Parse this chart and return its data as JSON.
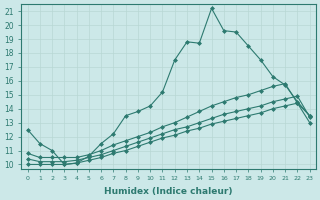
{
  "xlabel": "Humidex (Indice chaleur)",
  "ylabel": "",
  "background_color": "#cce8e8",
  "line_color": "#2d7a70",
  "grid_color": "#b8d8d4",
  "xlim": [
    -0.5,
    23.5
  ],
  "ylim": [
    9.7,
    21.5
  ],
  "x_ticks": [
    0,
    1,
    2,
    3,
    4,
    5,
    6,
    7,
    8,
    9,
    10,
    11,
    12,
    13,
    14,
    15,
    16,
    17,
    18,
    19,
    20,
    21,
    22,
    23
  ],
  "y_ticks": [
    10,
    11,
    12,
    13,
    14,
    15,
    16,
    17,
    18,
    19,
    20,
    21
  ],
  "series": [
    {
      "x": [
        0,
        1,
        2,
        3,
        4,
        5,
        6,
        7,
        8,
        9,
        10,
        11,
        12,
        13,
        14,
        15,
        16,
        17,
        18,
        19,
        20,
        21,
        22,
        23
      ],
      "y": [
        12.5,
        11.5,
        11.0,
        10.0,
        10.1,
        10.6,
        11.5,
        12.2,
        13.5,
        13.8,
        14.2,
        15.2,
        17.5,
        18.8,
        18.7,
        21.2,
        19.6,
        19.5,
        18.5,
        17.5,
        16.3,
        15.7,
        14.5,
        13.5
      ]
    },
    {
      "x": [
        0,
        1,
        2,
        3,
        4,
        5,
        6,
        7,
        8,
        9,
        10,
        11,
        12,
        13,
        14,
        15,
        16,
        17,
        18,
        19,
        20,
        21,
        22,
        23
      ],
      "y": [
        10.8,
        10.5,
        10.5,
        10.5,
        10.5,
        10.7,
        11.0,
        11.4,
        11.7,
        12.0,
        12.3,
        12.7,
        13.0,
        13.4,
        13.8,
        14.2,
        14.5,
        14.8,
        15.0,
        15.3,
        15.6,
        15.8,
        14.4,
        13.5
      ]
    },
    {
      "x": [
        0,
        1,
        2,
        3,
        4,
        5,
        6,
        7,
        8,
        9,
        10,
        11,
        12,
        13,
        14,
        15,
        16,
        17,
        18,
        19,
        20,
        21,
        22,
        23
      ],
      "y": [
        10.4,
        10.2,
        10.2,
        10.2,
        10.3,
        10.5,
        10.7,
        11.0,
        11.3,
        11.6,
        11.9,
        12.2,
        12.5,
        12.7,
        13.0,
        13.3,
        13.6,
        13.8,
        14.0,
        14.2,
        14.5,
        14.7,
        14.9,
        13.4
      ]
    },
    {
      "x": [
        0,
        1,
        2,
        3,
        4,
        5,
        6,
        7,
        8,
        9,
        10,
        11,
        12,
        13,
        14,
        15,
        16,
        17,
        18,
        19,
        20,
        21,
        22,
        23
      ],
      "y": [
        10.0,
        10.0,
        10.0,
        10.0,
        10.1,
        10.3,
        10.5,
        10.8,
        11.0,
        11.3,
        11.6,
        11.9,
        12.1,
        12.4,
        12.6,
        12.9,
        13.1,
        13.3,
        13.5,
        13.7,
        14.0,
        14.2,
        14.4,
        13.0
      ]
    }
  ],
  "marker": "D",
  "markersize": 2.0,
  "linewidth": 0.8
}
